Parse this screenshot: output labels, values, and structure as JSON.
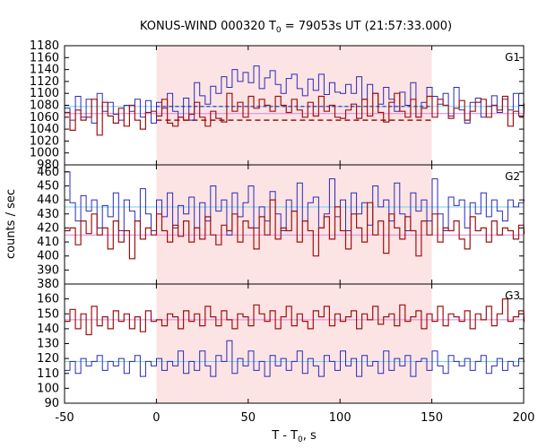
{
  "chart_data": {
    "type": "line",
    "title_main": "KONUS-WIND 000320 T",
    "title_sub": "0",
    "title_rest": " = 79053s UT (21:57:33.000)",
    "xlabel_main": "T - T",
    "xlabel_sub": "0",
    "xlabel_rest": ", s",
    "ylabel": "counts / sec",
    "xlim": [
      -50,
      200
    ],
    "x_ticks": [
      -50,
      0,
      50,
      100,
      150,
      200
    ],
    "shaded_interval": [
      0,
      150
    ],
    "bin_width": 2.944,
    "colors": {
      "red": "#a01010",
      "blue": "#2a2ab8",
      "shade": "#fde4e4",
      "bg_red": "#e080e0",
      "bg_blue": "#70d0f0",
      "frame": "#000000"
    },
    "panels": [
      {
        "name": "G1",
        "ylim": [
          980,
          1180
        ],
        "y_ticks": [
          980,
          1000,
          1020,
          1040,
          1060,
          1080,
          1100,
          1120,
          1140,
          1160,
          1180
        ],
        "bg_red": 1066,
        "bg_blue": 1078,
        "mean_red_dashed": 1055,
        "mean_blue_dashed": 1078,
        "red_values": [
          1068,
          1038,
          1072,
          1055,
          1060,
          1090,
          1030,
          1085,
          1062,
          1050,
          1075,
          1045,
          1080,
          1055,
          1040,
          1068,
          1070,
          1062,
          1090,
          1050,
          1045,
          1060,
          1055,
          1065,
          1085,
          1060,
          1045,
          1070,
          1058,
          1052,
          1100,
          1070,
          1085,
          1060,
          1095,
          1075,
          1090,
          1080,
          1070,
          1095,
          1080,
          1068,
          1090,
          1072,
          1060,
          1085,
          1062,
          1095,
          1070,
          1080,
          1060,
          1058,
          1072,
          1082,
          1058,
          1090,
          1062,
          1100,
          1068,
          1052,
          1085,
          1100,
          1070,
          1060,
          1090,
          1060,
          1075,
          1095,
          1060,
          1090,
          1080,
          1058,
          1075,
          1088,
          1055,
          1070,
          1085,
          1090,
          1060,
          1080,
          1072,
          1095,
          1045,
          1070,
          1062,
          1082
        ],
        "blue_values": [
          1075,
          1055,
          1095,
          1060,
          1090,
          1050,
          1100,
          1070,
          1085,
          1065,
          1055,
          1080,
          1070,
          1090,
          1060,
          1088,
          1050,
          1085,
          1075,
          1100,
          1070,
          1060,
          1092,
          1055,
          1118,
          1096,
          1082,
          1112,
          1100,
          1128,
          1110,
          1140,
          1120,
          1135,
          1118,
          1146,
          1108,
          1126,
          1138,
          1115,
          1100,
          1125,
          1132,
          1108,
          1096,
          1124,
          1105,
          1132,
          1098,
          1118,
          1102,
          1100,
          1115,
          1100,
          1128,
          1090,
          1115,
          1100,
          1082,
          1110,
          1090,
          1070,
          1102,
          1080,
          1118,
          1060,
          1085,
          1110,
          1095,
          1082,
          1100,
          1062,
          1110,
          1072,
          1050,
          1085,
          1092,
          1060,
          1078,
          1096,
          1068,
          1090,
          1072,
          1100,
          1062,
          1082
        ]
      },
      {
        "name": "G2",
        "ylim": [
          380,
          465
        ],
        "y_ticks": [
          380,
          390,
          400,
          410,
          420,
          430,
          440,
          450,
          460
        ],
        "bg_red": 415,
        "bg_blue": 435,
        "red_values": [
          418,
          420,
          408,
          425,
          416,
          430,
          415,
          420,
          405,
          425,
          410,
          418,
          398,
          425,
          412,
          420,
          415,
          430,
          418,
          410,
          422,
          414,
          425,
          410,
          420,
          412,
          428,
          415,
          408,
          422,
          418,
          430,
          410,
          425,
          420,
          405,
          428,
          415,
          440,
          412,
          420,
          418,
          432,
          410,
          425,
          418,
          400,
          420,
          428,
          412,
          435,
          418,
          405,
          430,
          420,
          410,
          438,
          415,
          425,
          402,
          430,
          420,
          412,
          428,
          418,
          400,
          425,
          415,
          430,
          410,
          420,
          418,
          425,
          412,
          405,
          428,
          418,
          420,
          410,
          425,
          415,
          420,
          418,
          412,
          422,
          416
        ],
        "blue_values": [
          460,
          438,
          425,
          443,
          432,
          440,
          420,
          436,
          428,
          445,
          418,
          440,
          432,
          425,
          448,
          430,
          418,
          440,
          428,
          445,
          420,
          436,
          430,
          442,
          420,
          438,
          425,
          450,
          432,
          440,
          415,
          445,
          428,
          438,
          450,
          420,
          435,
          425,
          446,
          430,
          418,
          440,
          432,
          452,
          425,
          438,
          442,
          420,
          430,
          455,
          428,
          440,
          418,
          445,
          430,
          438,
          422,
          450,
          435,
          440,
          425,
          452,
          430,
          418,
          445,
          432,
          440,
          425,
          455,
          430,
          418,
          442,
          436,
          440,
          420,
          438,
          430,
          445,
          428,
          440,
          432,
          425,
          440,
          435,
          438,
          440
        ]
      },
      {
        "name": "G3",
        "ylim": [
          90,
          170
        ],
        "y_ticks": [
          90,
          100,
          110,
          120,
          130,
          140,
          150,
          160
        ],
        "bg_red": 146,
        "bg_blue": 118,
        "red_values": [
          145,
          153,
          140,
          150,
          136,
          155,
          142,
          148,
          140,
          152,
          145,
          150,
          140,
          148,
          138,
          152,
          145,
          146,
          142,
          150,
          148,
          140,
          152,
          145,
          150,
          142,
          155,
          148,
          142,
          152,
          146,
          140,
          150,
          148,
          142,
          156,
          150,
          145,
          152,
          140,
          148,
          155,
          142,
          150,
          145,
          140,
          152,
          148,
          155,
          142,
          150,
          145,
          148,
          152,
          140,
          150,
          146,
          155,
          143,
          148,
          150,
          142,
          156,
          145,
          148,
          152,
          140,
          150,
          145,
          155,
          142,
          150,
          148,
          145,
          152,
          140,
          150,
          146,
          155,
          142,
          150,
          160,
          145,
          148,
          152,
          145
        ],
        "blue_values": [
          112,
          118,
          110,
          120,
          115,
          118,
          122,
          112,
          118,
          115,
          120,
          110,
          118,
          122,
          108,
          118,
          115,
          120,
          112,
          118,
          115,
          125,
          110,
          118,
          112,
          125,
          115,
          108,
          122,
          118,
          132,
          110,
          120,
          115,
          125,
          112,
          118,
          108,
          122,
          115,
          120,
          112,
          118,
          125,
          110,
          120,
          115,
          108,
          122,
          118,
          112,
          125,
          115,
          120,
          108,
          122,
          115,
          118,
          110,
          125,
          112,
          120,
          115,
          122,
          108,
          118,
          120,
          112,
          125,
          115,
          110,
          122,
          118,
          115,
          120,
          112,
          118,
          122,
          110,
          115,
          120,
          112,
          118,
          115,
          120,
          118
        ]
      }
    ]
  }
}
